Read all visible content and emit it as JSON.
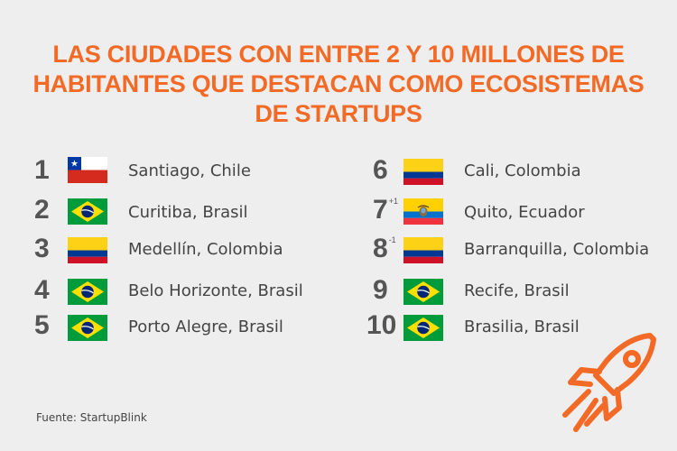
{
  "title": {
    "line1": "LAS CIUDADES CON ENTRE 2 Y 10 MILLONES DE",
    "line2": "HABITANTES QUE DESTACAN COMO ECOSISTEMAS",
    "line3": "DE STARTUPS"
  },
  "colors": {
    "accent": "#f26a25",
    "text": "#444444",
    "rank": "#555555",
    "background": "#eeeeee"
  },
  "rankings": [
    {
      "rank": "1",
      "change": "",
      "city": "Santiago, Chile",
      "flag": "chile-flag-icon"
    },
    {
      "rank": "2",
      "change": "",
      "city": "Curitiba, Brasil",
      "flag": "brazil-flag-icon"
    },
    {
      "rank": "3",
      "change": "",
      "city": "Medellín, Colombia",
      "flag": "colombia-flag-icon"
    },
    {
      "rank": "4",
      "change": "",
      "city": "Belo Horizonte, Brasil",
      "flag": "brazil-flag-icon"
    },
    {
      "rank": "5",
      "change": "",
      "city": "Porto Alegre, Brasil",
      "flag": "brazil-flag-icon"
    },
    {
      "rank": "6",
      "change": "",
      "city": "Cali, Colombia",
      "flag": "colombia-flag-icon"
    },
    {
      "rank": "7",
      "change": "+1",
      "city": "Quito, Ecuador",
      "flag": "ecuador-flag-icon"
    },
    {
      "rank": "8",
      "change": "-1",
      "city": "Barranquilla, Colombia",
      "flag": "colombia-flag-icon"
    },
    {
      "rank": "9",
      "change": "",
      "city": "Recife, Brasil",
      "flag": "brazil-flag-icon"
    },
    {
      "rank": "10",
      "change": "",
      "city": "Brasilia, Brasil",
      "flag": "brazil-flag-icon"
    }
  ],
  "source": "Fuente: StartupBlink",
  "decoration": {
    "icon": "rocket-icon"
  }
}
